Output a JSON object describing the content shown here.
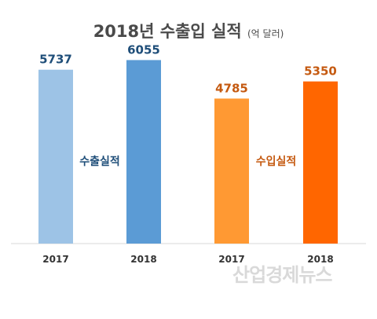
{
  "chart_data": {
    "type": "bar",
    "title": "2018년 수출입 실적",
    "unit": "(억 달러)",
    "categories": [
      "2017",
      "2018",
      "2017",
      "2018"
    ],
    "values": [
      5737,
      6055,
      4785,
      5350
    ],
    "groups": [
      {
        "label": "수출실적",
        "color": "#1f4e79",
        "bar_indices": [
          0,
          1
        ]
      },
      {
        "label": "수입실적",
        "color": "#c55a11",
        "bar_indices": [
          2,
          3
        ]
      }
    ],
    "bar_colors": [
      "#9dc3e6",
      "#5b9bd5",
      "#ff9933",
      "#ff6600"
    ],
    "value_label_colors": [
      "#1f4e79",
      "#1f4e79",
      "#c55a11",
      "#c55a11"
    ],
    "ylim": [
      0,
      7000
    ],
    "grid": false,
    "legend": "none"
  },
  "watermark": "산업경제뉴스"
}
